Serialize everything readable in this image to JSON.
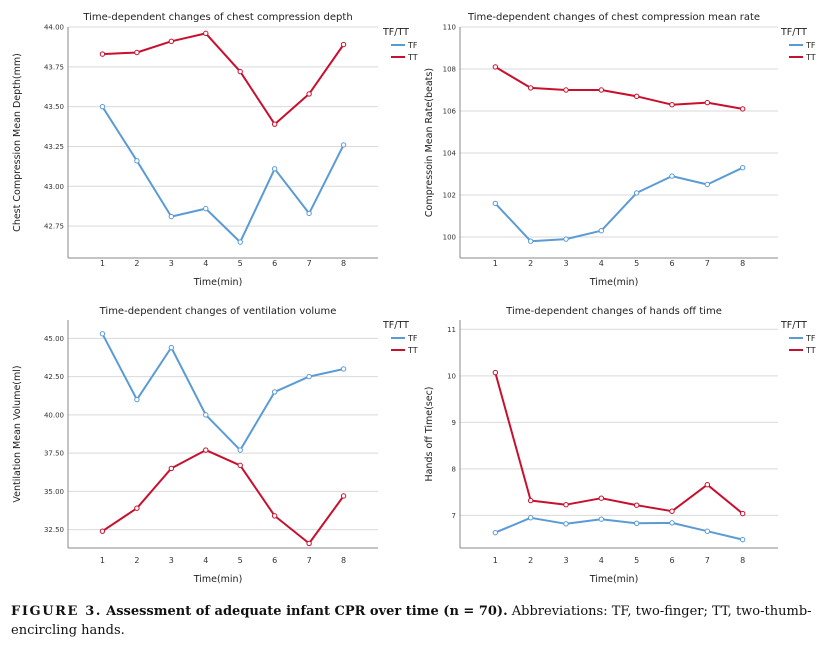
{
  "colors": {
    "TF": "#5b9bd5",
    "TT": "#c8102e"
  },
  "legend": {
    "title": "TF/TT",
    "entries": [
      "TF",
      "TT"
    ]
  },
  "chart_data": [
    {
      "type": "line",
      "title": "Time-dependent changes of chest compression depth",
      "xlabel": "Time(min)",
      "ylabel": "Chest Compression Mean Depth(mm)",
      "x": [
        1,
        2,
        3,
        4,
        5,
        6,
        7,
        8
      ],
      "ylim": [
        42.55,
        44.0
      ],
      "yticks": [
        "42.75",
        "43.00",
        "43.25",
        "43.50",
        "43.75",
        "44.00"
      ],
      "series": [
        {
          "name": "TF",
          "values": [
            43.5,
            43.16,
            42.81,
            42.86,
            42.65,
            43.11,
            42.83,
            43.26
          ]
        },
        {
          "name": "TT",
          "values": [
            43.83,
            43.84,
            43.91,
            43.96,
            43.72,
            43.39,
            43.58,
            43.89
          ]
        }
      ]
    },
    {
      "type": "line",
      "title": "Time-dependent changes of chest compression mean rate",
      "xlabel": "Time(min)",
      "ylabel": "Compressoin Mean Rate(beats)",
      "x": [
        1,
        2,
        3,
        4,
        5,
        6,
        7,
        8
      ],
      "ylim": [
        99.0,
        110.0
      ],
      "yticks": [
        "100",
        "102",
        "104",
        "106",
        "108",
        "110"
      ],
      "series": [
        {
          "name": "TF",
          "values": [
            101.6,
            99.8,
            99.9,
            100.3,
            102.1,
            102.9,
            102.5,
            103.3
          ]
        },
        {
          "name": "TT",
          "values": [
            108.1,
            107.1,
            107.0,
            107.0,
            106.7,
            106.3,
            106.4,
            106.1
          ]
        }
      ]
    },
    {
      "type": "line",
      "title": "Time-dependent changes of ventilation volume",
      "xlabel": "Time(min)",
      "ylabel": "Ventilation Mean Volume(ml)",
      "x": [
        1,
        2,
        3,
        4,
        5,
        6,
        7,
        8
      ],
      "ylim": [
        31.3,
        46.2
      ],
      "yticks": [
        "32.50",
        "35.00",
        "37.50",
        "40.00",
        "42.50",
        "45.00"
      ],
      "series": [
        {
          "name": "TF",
          "values": [
            45.3,
            41.0,
            44.4,
            40.0,
            37.7,
            41.5,
            42.5,
            43.0
          ]
        },
        {
          "name": "TT",
          "values": [
            32.4,
            33.9,
            36.5,
            37.7,
            36.7,
            33.4,
            31.6,
            34.7
          ]
        }
      ]
    },
    {
      "type": "line",
      "title": "Time-dependent changes of hands off time",
      "xlabel": "Time(min)",
      "ylabel": "Hands off Time(sec)",
      "x": [
        1,
        2,
        3,
        4,
        5,
        6,
        7,
        8
      ],
      "ylim": [
        6.3,
        11.2
      ],
      "yticks": [
        "7",
        "8",
        "9",
        "10",
        "11"
      ],
      "series": [
        {
          "name": "TF",
          "values": [
            6.63,
            6.95,
            6.82,
            6.92,
            6.83,
            6.84,
            6.66,
            6.48
          ]
        },
        {
          "name": "TT",
          "values": [
            10.07,
            7.32,
            7.23,
            7.37,
            7.22,
            7.09,
            7.66,
            7.04
          ]
        }
      ]
    }
  ],
  "caption": {
    "figure_label": "FIGURE 3.",
    "bold_text": "Assessment of adequate infant CPR over time (n = 70).",
    "rest": "Abbreviations: TF, two-finger; TT, two-thumb-encircling hands."
  }
}
